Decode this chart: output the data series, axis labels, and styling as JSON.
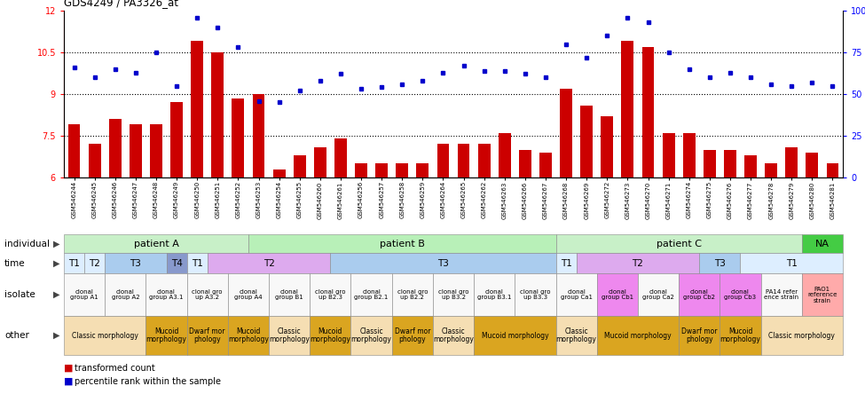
{
  "title": "GDS4249 / PA3326_at",
  "samples": [
    "GSM546244",
    "GSM546245",
    "GSM546246",
    "GSM546247",
    "GSM546248",
    "GSM546249",
    "GSM546250",
    "GSM546251",
    "GSM546252",
    "GSM546253",
    "GSM546254",
    "GSM546255",
    "GSM546260",
    "GSM546261",
    "GSM546256",
    "GSM546257",
    "GSM546258",
    "GSM546259",
    "GSM546264",
    "GSM546265",
    "GSM546262",
    "GSM546263",
    "GSM546266",
    "GSM546267",
    "GSM546268",
    "GSM546269",
    "GSM546272",
    "GSM546273",
    "GSM546270",
    "GSM546271",
    "GSM546274",
    "GSM546275",
    "GSM546276",
    "GSM546277",
    "GSM546278",
    "GSM546279",
    "GSM546280",
    "GSM546281"
  ],
  "bar_values": [
    7.9,
    7.2,
    8.1,
    7.9,
    7.9,
    8.7,
    10.9,
    10.5,
    8.85,
    9.0,
    6.3,
    6.8,
    7.1,
    7.4,
    6.5,
    6.5,
    6.5,
    6.5,
    7.2,
    7.2,
    7.2,
    7.6,
    7.0,
    6.9,
    9.2,
    8.6,
    8.2,
    10.9,
    10.7,
    7.6,
    7.6,
    7.0,
    7.0,
    6.8,
    6.5,
    7.1,
    6.9,
    6.5
  ],
  "dot_values": [
    66,
    60,
    65,
    63,
    75,
    55,
    96,
    90,
    78,
    46,
    45,
    52,
    58,
    62,
    53,
    54,
    56,
    58,
    63,
    67,
    64,
    64,
    62,
    60,
    80,
    72,
    85,
    96,
    93,
    75,
    65,
    60,
    63,
    60,
    56,
    55,
    57,
    55
  ],
  "bar_color": "#cc0000",
  "dot_color": "#0000cc",
  "y_min": 6,
  "y_max": 12,
  "yticks_left": [
    6,
    7.5,
    9,
    10.5,
    12
  ],
  "ytick_labels_left": [
    "6",
    "7.5",
    "9",
    "10.5",
    "12"
  ],
  "yticks_right_pct": [
    0,
    25,
    50,
    75,
    100
  ],
  "ytick_labels_right": [
    "0",
    "25",
    "50",
    "75",
    "100%"
  ],
  "hlines": [
    7.5,
    9.0,
    10.5
  ],
  "individual_row": [
    {
      "label": "patient A",
      "cs": 0,
      "ce": 9,
      "color": "#c8f0c8"
    },
    {
      "label": "patient B",
      "cs": 9,
      "ce": 24,
      "color": "#b8f0b8"
    },
    {
      "label": "patient C",
      "cs": 24,
      "ce": 36,
      "color": "#c8f0c8"
    },
    {
      "label": "NA",
      "cs": 36,
      "ce": 38,
      "color": "#44cc44"
    }
  ],
  "time_row": [
    {
      "label": "T1",
      "cs": 0,
      "ce": 1,
      "color": "#ddeeff"
    },
    {
      "label": "T2",
      "cs": 1,
      "ce": 2,
      "color": "#ddeeff"
    },
    {
      "label": "T3",
      "cs": 2,
      "ce": 5,
      "color": "#aaccee"
    },
    {
      "label": "T4",
      "cs": 5,
      "ce": 6,
      "color": "#8899cc"
    },
    {
      "label": "T1",
      "cs": 6,
      "ce": 7,
      "color": "#ddeeff"
    },
    {
      "label": "T2",
      "cs": 7,
      "ce": 13,
      "color": "#ddaaee"
    },
    {
      "label": "T3",
      "cs": 13,
      "ce": 24,
      "color": "#aaccee"
    },
    {
      "label": "T1",
      "cs": 24,
      "ce": 25,
      "color": "#ddeeff"
    },
    {
      "label": "T2",
      "cs": 25,
      "ce": 31,
      "color": "#ddaaee"
    },
    {
      "label": "T3",
      "cs": 31,
      "ce": 33,
      "color": "#aaccee"
    },
    {
      "label": "T1",
      "cs": 33,
      "ce": 38,
      "color": "#ddeeff"
    }
  ],
  "isolate_row": [
    {
      "label": "clonal\ngroup A1",
      "cs": 0,
      "ce": 2,
      "color": "#f8f8f8"
    },
    {
      "label": "clonal\ngroup A2",
      "cs": 2,
      "ce": 4,
      "color": "#f8f8f8"
    },
    {
      "label": "clonal\ngroup A3.1",
      "cs": 4,
      "ce": 6,
      "color": "#f8f8f8"
    },
    {
      "label": "clonal gro\nup A3.2",
      "cs": 6,
      "ce": 8,
      "color": "#f8f8f8"
    },
    {
      "label": "clonal\ngroup A4",
      "cs": 8,
      "ce": 10,
      "color": "#f8f8f8"
    },
    {
      "label": "clonal\ngroup B1",
      "cs": 10,
      "ce": 12,
      "color": "#f8f8f8"
    },
    {
      "label": "clonal gro\nup B2.3",
      "cs": 12,
      "ce": 14,
      "color": "#f8f8f8"
    },
    {
      "label": "clonal\ngroup B2.1",
      "cs": 14,
      "ce": 16,
      "color": "#f8f8f8"
    },
    {
      "label": "clonal gro\nup B2.2",
      "cs": 16,
      "ce": 18,
      "color": "#f8f8f8"
    },
    {
      "label": "clonal gro\nup B3.2",
      "cs": 18,
      "ce": 20,
      "color": "#f8f8f8"
    },
    {
      "label": "clonal\ngroup B3.1",
      "cs": 20,
      "ce": 22,
      "color": "#f8f8f8"
    },
    {
      "label": "clonal gro\nup B3.3",
      "cs": 22,
      "ce": 24,
      "color": "#f8f8f8"
    },
    {
      "label": "clonal\ngroup Ca1",
      "cs": 24,
      "ce": 26,
      "color": "#f8f8f8"
    },
    {
      "label": "clonal\ngroup Cb1",
      "cs": 26,
      "ce": 28,
      "color": "#ee88ee"
    },
    {
      "label": "clonal\ngroup Ca2",
      "cs": 28,
      "ce": 30,
      "color": "#f8f8f8"
    },
    {
      "label": "clonal\ngroup Cb2",
      "cs": 30,
      "ce": 32,
      "color": "#ee88ee"
    },
    {
      "label": "clonal\ngroup Cb3",
      "cs": 32,
      "ce": 34,
      "color": "#ee88ee"
    },
    {
      "label": "PA14 refer\nence strain",
      "cs": 34,
      "ce": 36,
      "color": "#f8f8f8"
    },
    {
      "label": "PAO1\nreference\nstrain",
      "cs": 36,
      "ce": 38,
      "color": "#ffaaaa"
    }
  ],
  "other_row": [
    {
      "label": "Classic morphology",
      "cs": 0,
      "ce": 4,
      "color": "#f5deb3"
    },
    {
      "label": "Mucoid\nmorphology",
      "cs": 4,
      "ce": 6,
      "color": "#daa520"
    },
    {
      "label": "Dwarf mor\nphology",
      "cs": 6,
      "ce": 8,
      "color": "#daa520"
    },
    {
      "label": "Mucoid\nmorphology",
      "cs": 8,
      "ce": 10,
      "color": "#daa520"
    },
    {
      "label": "Classic\nmorphology",
      "cs": 10,
      "ce": 12,
      "color": "#f5deb3"
    },
    {
      "label": "Mucoid\nmorphology",
      "cs": 12,
      "ce": 14,
      "color": "#daa520"
    },
    {
      "label": "Classic\nmorphology",
      "cs": 14,
      "ce": 16,
      "color": "#f5deb3"
    },
    {
      "label": "Dwarf mor\nphology",
      "cs": 16,
      "ce": 18,
      "color": "#daa520"
    },
    {
      "label": "Classic\nmorphology",
      "cs": 18,
      "ce": 20,
      "color": "#f5deb3"
    },
    {
      "label": "Mucoid morphology",
      "cs": 20,
      "ce": 24,
      "color": "#daa520"
    },
    {
      "label": "Classic\nmorphology",
      "cs": 24,
      "ce": 26,
      "color": "#f5deb3"
    },
    {
      "label": "Mucoid morphology",
      "cs": 26,
      "ce": 30,
      "color": "#daa520"
    },
    {
      "label": "Dwarf mor\nphology",
      "cs": 30,
      "ce": 32,
      "color": "#daa520"
    },
    {
      "label": "Mucoid\nmorphology",
      "cs": 32,
      "ce": 34,
      "color": "#daa520"
    },
    {
      "label": "Classic morphology",
      "cs": 34,
      "ce": 38,
      "color": "#f5deb3"
    }
  ],
  "row_labels": [
    "individual",
    "time",
    "isolate",
    "other"
  ],
  "legend_bar_label": "transformed count",
  "legend_dot_label": "percentile rank within the sample"
}
